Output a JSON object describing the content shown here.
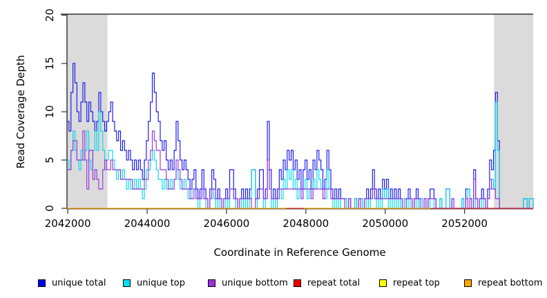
{
  "y_axis": {
    "label": "Read Coverage Depth",
    "ticks": [
      0,
      5,
      10,
      15,
      20
    ],
    "range": [
      0,
      20
    ]
  },
  "x_axis": {
    "label": "Coordinate in Reference Genome",
    "ticks": [
      2042000,
      2044000,
      2046000,
      2048000,
      2050000,
      2052000
    ],
    "range": [
      2041980,
      2053730
    ]
  },
  "legend": [
    {
      "label": "unique total",
      "color": "#0000EE"
    },
    {
      "label": "unique top",
      "color": "#00E0EE"
    },
    {
      "label": "unique bottom",
      "color": "#9B30DC"
    },
    {
      "label": "repeat total",
      "color": "#EE0000"
    },
    {
      "label": "repeat top",
      "color": "#FFFF00"
    },
    {
      "label": "repeat bottom",
      "color": "#FFA500"
    }
  ],
  "shaded_regions": [
    {
      "start": 2041980,
      "end": 2043000
    },
    {
      "start": 2052740,
      "end": 2053730
    }
  ],
  "chart_data": {
    "type": "step-line coverage plot",
    "title": "",
    "xlabel": "Coordinate in Reference Genome",
    "ylabel": "Read Coverage Depth",
    "xlim": [
      2041980,
      2053730
    ],
    "ylim": [
      0,
      20
    ],
    "grid": false,
    "legend_position": "bottom",
    "x_start": 2041980,
    "x_step": 50,
    "series": [
      {
        "name": "unique total",
        "color": "#1414EE",
        "values": [
          9,
          8,
          12,
          15,
          13,
          10,
          9,
          11,
          13,
          11,
          9,
          11,
          10,
          9,
          8,
          9,
          12,
          10,
          9,
          8,
          9,
          10,
          11,
          9,
          8,
          7,
          8,
          6,
          7,
          6,
          5,
          6,
          5,
          4,
          5,
          4,
          5,
          4,
          3,
          5,
          7,
          9,
          11,
          14,
          12,
          10,
          9,
          7,
          6,
          7,
          5,
          4,
          5,
          4,
          6,
          9,
          7,
          5,
          4,
          5,
          4,
          3,
          2,
          3,
          4,
          2,
          1,
          2,
          4,
          2,
          1,
          0,
          2,
          4,
          3,
          1,
          2,
          1,
          0,
          1,
          2,
          1,
          4,
          4,
          2,
          1,
          0,
          1,
          2,
          1,
          2,
          1,
          2,
          4,
          4,
          1,
          2,
          4,
          4,
          1,
          2,
          9,
          4,
          1,
          2,
          1,
          2,
          4,
          3,
          5,
          4,
          6,
          5,
          6,
          4,
          5,
          3,
          4,
          2,
          4,
          5,
          3,
          4,
          2,
          5,
          4,
          6,
          5,
          4,
          2,
          3,
          6,
          4,
          2,
          1,
          2,
          1,
          2,
          1,
          1,
          1,
          0,
          1,
          0,
          0,
          1,
          0,
          1,
          1,
          0,
          1,
          2,
          1,
          2,
          4,
          2,
          1,
          2,
          1,
          3,
          2,
          3,
          1,
          2,
          1,
          2,
          1,
          2,
          1,
          0,
          1,
          1,
          2,
          1,
          0,
          1,
          2,
          1,
          1,
          0,
          1,
          0,
          1,
          2,
          2,
          1,
          0,
          0,
          1,
          0,
          0,
          2,
          2,
          0,
          1,
          0,
          0,
          0,
          0,
          1,
          0,
          2,
          2,
          1,
          0,
          4,
          1,
          0,
          1,
          2,
          1,
          0,
          2,
          5,
          4,
          6,
          12,
          7,
          0,
          0,
          0,
          0,
          0,
          0,
          0,
          0,
          0,
          0,
          0,
          0,
          1,
          1,
          0,
          1,
          1,
          0
        ]
      },
      {
        "name": "unique top",
        "color": "#00D8EE",
        "values": [
          5,
          4,
          6,
          8,
          6,
          5,
          4,
          6,
          5,
          6,
          8,
          5,
          4,
          6,
          8,
          6,
          10,
          8,
          6,
          4,
          5,
          6,
          6,
          5,
          4,
          3,
          4,
          3,
          4,
          3,
          2,
          3,
          2,
          2,
          3,
          2,
          3,
          2,
          1,
          2,
          4,
          4,
          5,
          6,
          5,
          4,
          3,
          3,
          2,
          3,
          2,
          2,
          3,
          2,
          3,
          4,
          3,
          2,
          2,
          3,
          2,
          1,
          1,
          2,
          2,
          1,
          0,
          1,
          2,
          1,
          0,
          0,
          1,
          2,
          1,
          0,
          1,
          0,
          0,
          0,
          1,
          0,
          2,
          2,
          1,
          0,
          0,
          0,
          1,
          0,
          1,
          0,
          1,
          4,
          4,
          0,
          1,
          2,
          2,
          0,
          1,
          4,
          2,
          0,
          1,
          0,
          1,
          2,
          1,
          3,
          2,
          4,
          3,
          4,
          2,
          3,
          1,
          2,
          1,
          2,
          3,
          1,
          2,
          1,
          3,
          2,
          4,
          3,
          2,
          1,
          1,
          4,
          2,
          1,
          0,
          1,
          0,
          1,
          0,
          0,
          1,
          0,
          0,
          0,
          0,
          1,
          0,
          0,
          1,
          0,
          0,
          1,
          0,
          1,
          2,
          1,
          0,
          1,
          0,
          2,
          1,
          2,
          0,
          1,
          0,
          1,
          0,
          1,
          0,
          0,
          1,
          0,
          1,
          0,
          0,
          0,
          1,
          0,
          1,
          0,
          0,
          0,
          0,
          1,
          1,
          0,
          0,
          0,
          1,
          0,
          0,
          2,
          2,
          0,
          0,
          0,
          0,
          0,
          0,
          1,
          0,
          1,
          2,
          0,
          0,
          1,
          0,
          0,
          0,
          1,
          0,
          0,
          1,
          2,
          3,
          2,
          11,
          6,
          0,
          0,
          0,
          0,
          0,
          0,
          0,
          0,
          0,
          0,
          0,
          0,
          1,
          1,
          0,
          1,
          1,
          0
        ]
      },
      {
        "name": "unique bottom",
        "color": "#9B30DC",
        "values": [
          4,
          4,
          6,
          7,
          7,
          5,
          5,
          5,
          8,
          5,
          2,
          6,
          6,
          3,
          4,
          3,
          2,
          2,
          4,
          5,
          4,
          4,
          5,
          4,
          4,
          4,
          4,
          3,
          3,
          3,
          3,
          3,
          3,
          2,
          2,
          2,
          2,
          2,
          2,
          3,
          3,
          5,
          6,
          8,
          7,
          6,
          6,
          4,
          4,
          4,
          3,
          2,
          2,
          2,
          3,
          5,
          4,
          3,
          2,
          2,
          2,
          2,
          1,
          1,
          2,
          1,
          1,
          1,
          2,
          1,
          1,
          0,
          1,
          2,
          2,
          1,
          1,
          1,
          0,
          1,
          1,
          1,
          2,
          2,
          1,
          1,
          0,
          1,
          1,
          1,
          1,
          1,
          1,
          0,
          0,
          1,
          1,
          2,
          2,
          1,
          1,
          5,
          2,
          1,
          1,
          1,
          1,
          2,
          2,
          2,
          2,
          2,
          2,
          2,
          2,
          2,
          2,
          2,
          1,
          2,
          2,
          2,
          2,
          1,
          2,
          2,
          2,
          2,
          2,
          1,
          2,
          2,
          2,
          1,
          1,
          1,
          1,
          1,
          1,
          1,
          0,
          0,
          1,
          0,
          0,
          0,
          0,
          1,
          0,
          0,
          1,
          1,
          1,
          1,
          2,
          1,
          1,
          1,
          1,
          1,
          1,
          1,
          1,
          1,
          1,
          1,
          1,
          1,
          1,
          0,
          0,
          1,
          1,
          1,
          0,
          1,
          1,
          1,
          0,
          0,
          1,
          0,
          1,
          1,
          1,
          1,
          0,
          0,
          0,
          0,
          0,
          0,
          0,
          0,
          1,
          0,
          0,
          0,
          0,
          0,
          0,
          1,
          0,
          1,
          0,
          3,
          1,
          0,
          1,
          1,
          1,
          0,
          1,
          3,
          2,
          2,
          1,
          1,
          0,
          0,
          0,
          0,
          0,
          0,
          0,
          0,
          0,
          0,
          0,
          0,
          0,
          0,
          0,
          0,
          0,
          0
        ]
      },
      {
        "name": "repeat total",
        "color": "#EE3333",
        "constant": 0
      },
      {
        "name": "repeat top",
        "color": "#FFFF00",
        "constant": 0
      },
      {
        "name": "repeat bottom",
        "color": "#FFA500",
        "constant": 0
      }
    ],
    "baseline_segments": [
      {
        "color": "#EE3333",
        "start": 2047500,
        "end": 2047950
      },
      {
        "color": "#EE3333",
        "start": 2051150,
        "end": 2053730
      },
      {
        "color": "#FFA500",
        "start": 2041980,
        "end": 2047500
      },
      {
        "color": "#FFA500",
        "start": 2047950,
        "end": 2051150
      }
    ],
    "shaded_region_color": "#DBDBDB"
  }
}
